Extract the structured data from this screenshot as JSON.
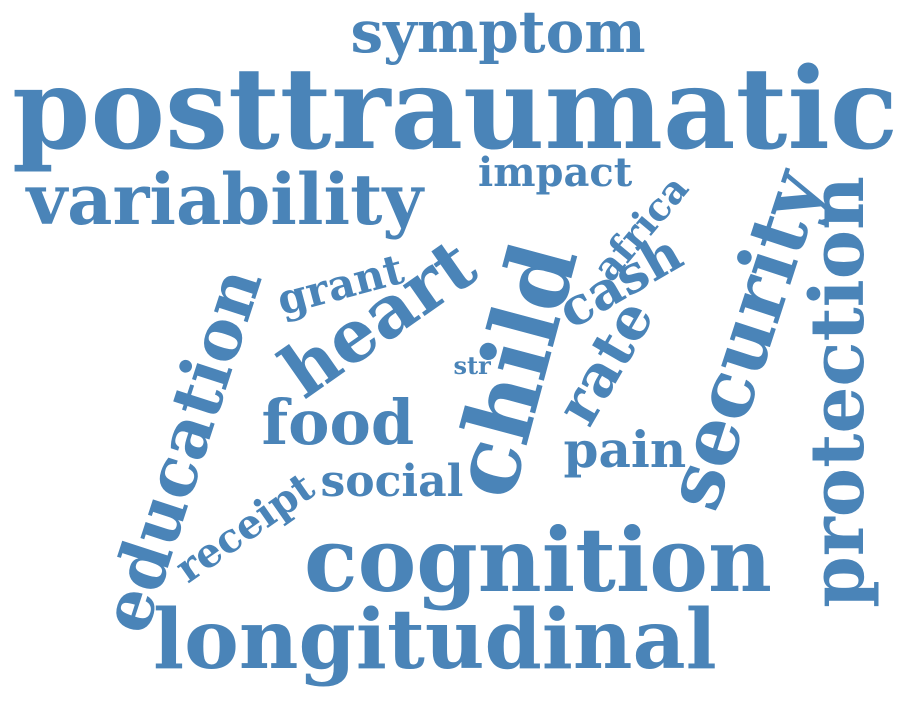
{
  "cloud": {
    "color": "#4a84b8",
    "words": [
      "symptom",
      "posttraumatic",
      "variability",
      "impact",
      "africa",
      "grant",
      "heart",
      "child",
      "cash",
      "security",
      "protection",
      "education",
      "str",
      "rate",
      "food",
      "pain",
      "receipt",
      "social",
      "cognition",
      "longitudinal"
    ]
  }
}
